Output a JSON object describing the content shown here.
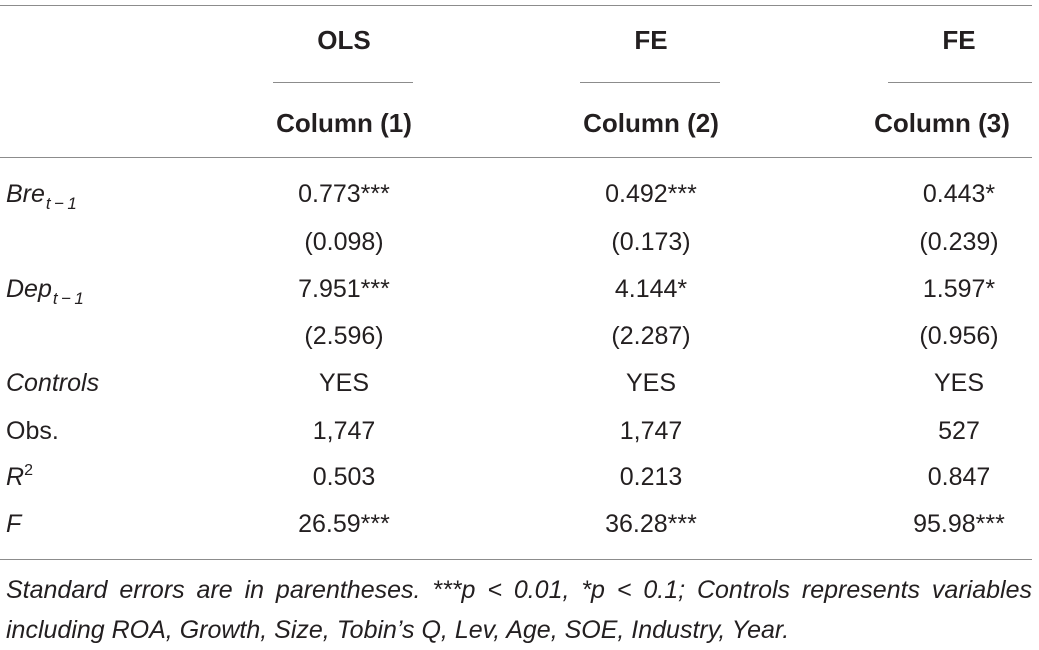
{
  "header": {
    "columns": [
      {
        "estimator": "OLS",
        "label": "Column (1)"
      },
      {
        "estimator": "FE",
        "label": "Column (2)"
      },
      {
        "estimator": "FE",
        "label": "Column (3)"
      }
    ]
  },
  "rows": {
    "bre": {
      "label": "Bre",
      "sub": "t − 1",
      "values": [
        "0.773***",
        "0.492***",
        "0.443*"
      ],
      "se": [
        "(0.098)",
        "(0.173)",
        "(0.239)"
      ]
    },
    "dep": {
      "label": "Dep",
      "sub": "t − 1",
      "values": [
        "7.951***",
        "4.144*",
        "1.597*"
      ],
      "se": [
        "(2.596)",
        "(2.287)",
        "(0.956)"
      ]
    },
    "controls": {
      "label": "Controls",
      "values": [
        "YES",
        "YES",
        "YES"
      ]
    },
    "obs": {
      "label": "Obs.",
      "values": [
        "1,747",
        "1,747",
        "527"
      ]
    },
    "r2": {
      "label": "R",
      "sup": "2",
      "values": [
        "0.503",
        "0.213",
        "0.847"
      ]
    },
    "f": {
      "label": "F",
      "values": [
        "26.59***",
        "36.28***",
        "95.98***"
      ]
    }
  },
  "note": "Standard errors are in parentheses. ***p < 0.01, *p < 0.1; Controls represents variables including ROA, Growth, Size, Tobin’s Q, Lev, Age, SOE, Industry, Year."
}
